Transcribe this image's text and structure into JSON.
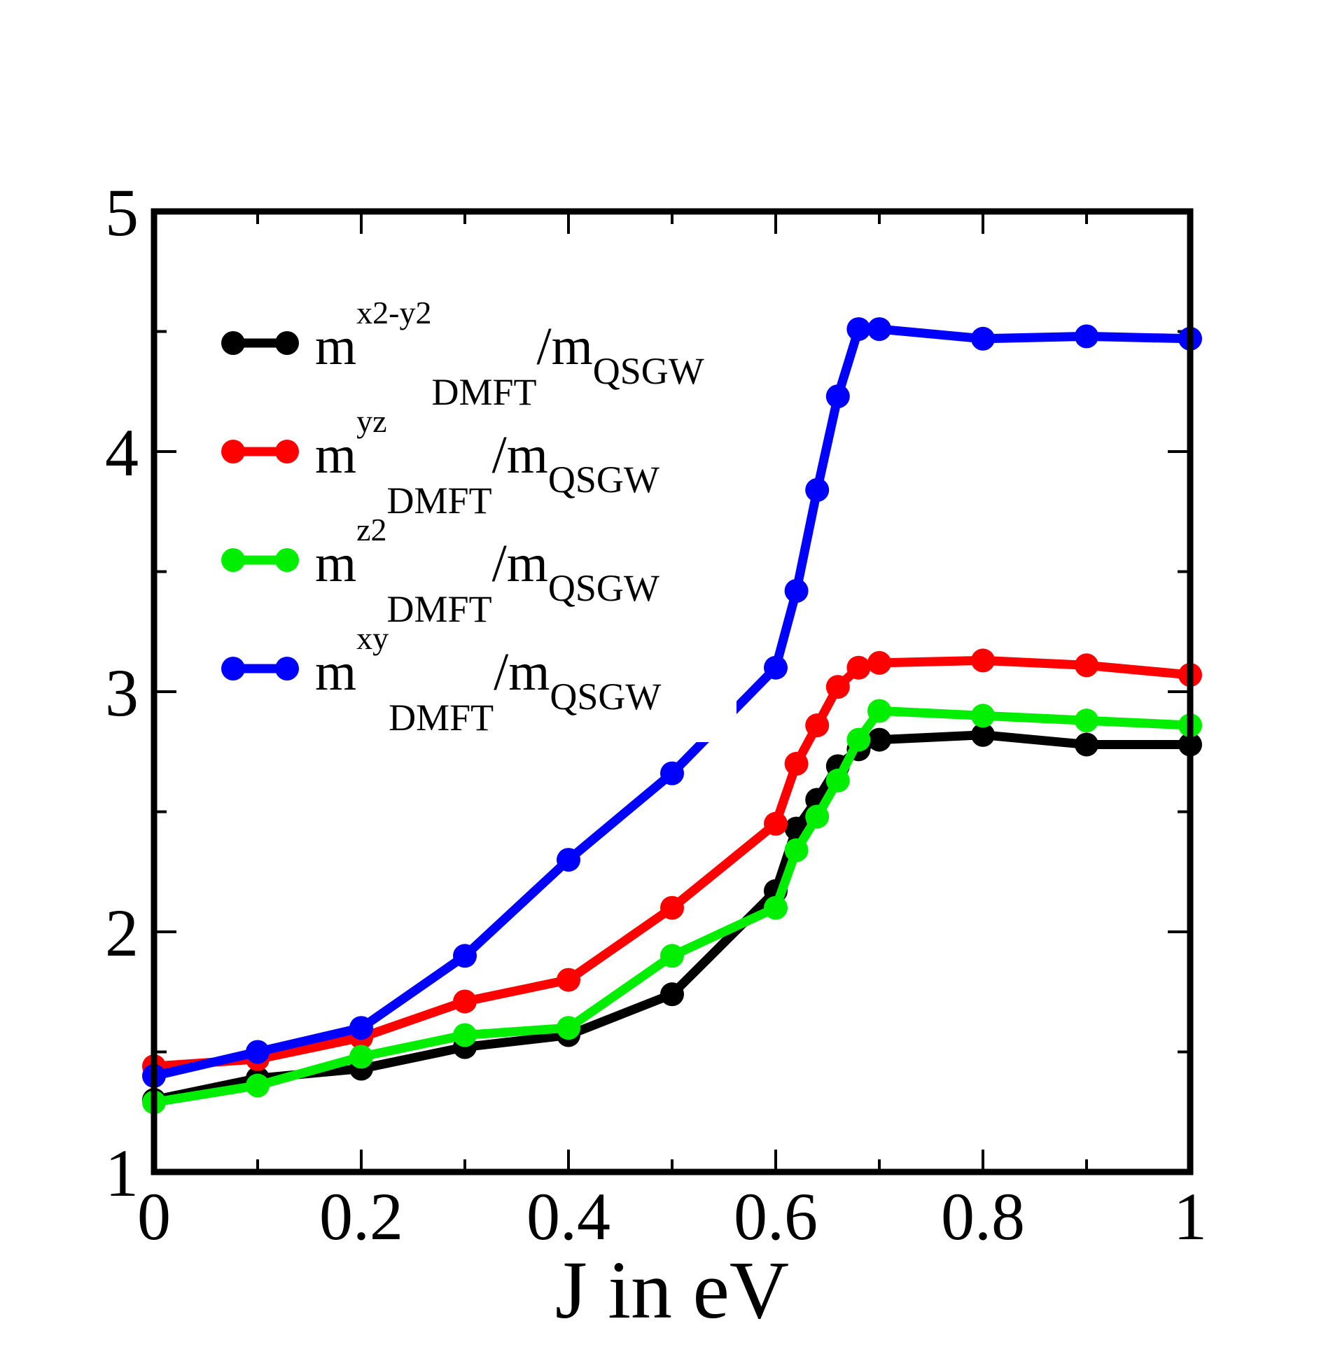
{
  "chart_data": {
    "type": "line",
    "title": "",
    "xlabel": "J in eV",
    "ylabel": "",
    "xlim": [
      0,
      1
    ],
    "ylim": [
      1,
      5
    ],
    "grid": false,
    "legend_position": "top-left",
    "x_ticks": [
      {
        "value": 0,
        "label": "0"
      },
      {
        "value": 0.2,
        "label": "0.2"
      },
      {
        "value": 0.4,
        "label": "0.4"
      },
      {
        "value": 0.6,
        "label": "0.6"
      },
      {
        "value": 0.8,
        "label": "0.8"
      },
      {
        "value": 1,
        "label": "1"
      }
    ],
    "x_minor_ticks": [
      0.1,
      0.3,
      0.5,
      0.7,
      0.9
    ],
    "y_ticks": [
      {
        "value": 1,
        "label": "1"
      },
      {
        "value": 2,
        "label": "2"
      },
      {
        "value": 3,
        "label": "3"
      },
      {
        "value": 4,
        "label": "4"
      },
      {
        "value": 5,
        "label": "5"
      }
    ],
    "y_minor_ticks": [
      1.5,
      2.5,
      3.5,
      4.5
    ],
    "series": [
      {
        "key": "x2y2",
        "color": "#000000",
        "legend": {
          "m": "m",
          "orbital": "x2-y2",
          "sub": "DMFT",
          "slash": "/",
          "m2": "m",
          "sub2": "QSGW"
        },
        "x": [
          0,
          0.1,
          0.2,
          0.3,
          0.4,
          0.5,
          0.6,
          0.62,
          0.64,
          0.66,
          0.68,
          0.7,
          0.8,
          0.9,
          1.0
        ],
        "y": [
          1.3,
          1.39,
          1.43,
          1.52,
          1.57,
          1.74,
          2.17,
          2.43,
          2.55,
          2.69,
          2.76,
          2.8,
          2.82,
          2.78,
          2.78
        ]
      },
      {
        "key": "yz",
        "color": "#ff0000",
        "legend": {
          "m": "m",
          "orbital": "yz",
          "sub": "DMFT",
          "slash": "/",
          "m2": "m",
          "sub2": "QSGW"
        },
        "x": [
          0,
          0.1,
          0.2,
          0.3,
          0.4,
          0.5,
          0.6,
          0.62,
          0.64,
          0.66,
          0.68,
          0.7,
          0.8,
          0.9,
          1.0
        ],
        "y": [
          1.44,
          1.47,
          1.56,
          1.71,
          1.8,
          2.1,
          2.45,
          2.7,
          2.86,
          3.02,
          3.1,
          3.12,
          3.13,
          3.11,
          3.07
        ]
      },
      {
        "key": "z2",
        "color": "#00ee00",
        "legend": {
          "m": "m",
          "orbital": "z2",
          "sub": "DMFT",
          "slash": "/",
          "m2": "m",
          "sub2": "QSGW"
        },
        "x": [
          0,
          0.1,
          0.2,
          0.3,
          0.4,
          0.5,
          0.6,
          0.62,
          0.64,
          0.66,
          0.68,
          0.7,
          0.8,
          0.9,
          1.0
        ],
        "y": [
          1.29,
          1.36,
          1.48,
          1.57,
          1.6,
          1.9,
          2.1,
          2.34,
          2.48,
          2.63,
          2.8,
          2.92,
          2.9,
          2.88,
          2.86
        ]
      },
      {
        "key": "xy",
        "color": "#0000ff",
        "legend": {
          "m": "m",
          "orbital": "xy",
          "sub": "DMFT",
          "slash": "/",
          "m2": "m",
          "sub2": "QSGW"
        },
        "x": [
          0,
          0.1,
          0.2,
          0.3,
          0.4,
          0.5,
          0.6,
          0.62,
          0.64,
          0.66,
          0.68,
          0.7,
          0.8,
          0.9,
          1.0
        ],
        "y": [
          1.4,
          1.5,
          1.6,
          1.9,
          2.3,
          2.66,
          3.1,
          3.42,
          3.84,
          4.23,
          4.51,
          4.51,
          4.47,
          4.48,
          4.47
        ]
      }
    ]
  }
}
